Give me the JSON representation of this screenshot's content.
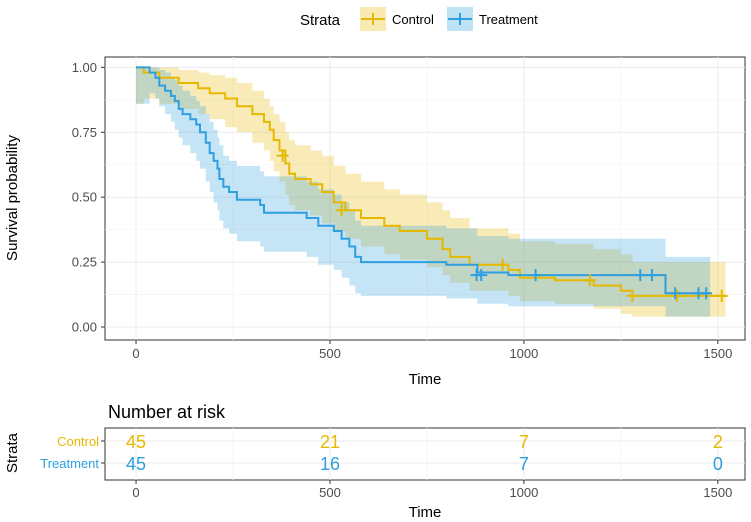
{
  "chart_data": [
    {
      "type": "line",
      "subtype": "kaplan-meier-step",
      "title": "",
      "xlabel": "Time",
      "ylabel": "Survival probability",
      "xlim": [
        -80,
        1570
      ],
      "ylim": [
        -0.05,
        1.04
      ],
      "xticks": [
        0,
        500,
        1000,
        1500
      ],
      "yticks": [
        0,
        0.25,
        0.5,
        0.75,
        1
      ],
      "ytick_labels": [
        "0.00",
        "0.25",
        "0.50",
        "0.75",
        "1.00"
      ],
      "grid": true,
      "legend": {
        "title": "Strata",
        "position": "top",
        "entries": [
          "Control",
          "Treatment"
        ]
      },
      "series": [
        {
          "name": "Control",
          "color": "#E7B800",
          "steps": [
            [
              0,
              1.0
            ],
            [
              20,
              0.98
            ],
            [
              60,
              0.96
            ],
            [
              110,
              0.94
            ],
            [
              160,
              0.92
            ],
            [
              190,
              0.9
            ],
            [
              230,
              0.88
            ],
            [
              260,
              0.85
            ],
            [
              300,
              0.82
            ],
            [
              330,
              0.79
            ],
            [
              345,
              0.76
            ],
            [
              355,
              0.72
            ],
            [
              370,
              0.68
            ],
            [
              385,
              0.63
            ],
            [
              395,
              0.59
            ],
            [
              410,
              0.57
            ],
            [
              450,
              0.55
            ],
            [
              480,
              0.52
            ],
            [
              510,
              0.48
            ],
            [
              540,
              0.45
            ],
            [
              580,
              0.42
            ],
            [
              640,
              0.39
            ],
            [
              680,
              0.37
            ],
            [
              750,
              0.34
            ],
            [
              790,
              0.3
            ],
            [
              810,
              0.27
            ],
            [
              860,
              0.24
            ],
            [
              960,
              0.22
            ],
            [
              990,
              0.19
            ],
            [
              1080,
              0.18
            ],
            [
              1180,
              0.16
            ],
            [
              1250,
              0.14
            ],
            [
              1280,
              0.12
            ]
          ],
          "end_time": 1520,
          "ci_upper": [
            1.0,
            1.0,
            1.0,
            0.99,
            0.98,
            0.97,
            0.96,
            0.94,
            0.91,
            0.88,
            0.85,
            0.82,
            0.79,
            0.75,
            0.72,
            0.7,
            0.68,
            0.66,
            0.62,
            0.59,
            0.56,
            0.53,
            0.51,
            0.48,
            0.45,
            0.42,
            0.38,
            0.36,
            0.33,
            0.32,
            0.3,
            0.28,
            0.25
          ],
          "ci_lower": [
            0.86,
            0.88,
            0.86,
            0.84,
            0.82,
            0.8,
            0.77,
            0.75,
            0.71,
            0.68,
            0.64,
            0.6,
            0.56,
            0.51,
            0.47,
            0.45,
            0.43,
            0.4,
            0.37,
            0.34,
            0.31,
            0.28,
            0.26,
            0.23,
            0.2,
            0.17,
            0.14,
            0.12,
            0.1,
            0.09,
            0.07,
            0.05,
            0.04
          ],
          "censored": [
            [
              378,
              0.66
            ],
            [
              530,
              0.45
            ],
            [
              945,
              0.24
            ],
            [
              1170,
              0.18
            ],
            [
              1280,
              0.12
            ],
            [
              1395,
              0.12
            ],
            [
              1510,
              0.12
            ]
          ]
        },
        {
          "name": "Treatment",
          "color": "#2E9FDF",
          "steps": [
            [
              0,
              1.0
            ],
            [
              35,
              0.98
            ],
            [
              50,
              0.96
            ],
            [
              60,
              0.93
            ],
            [
              75,
              0.91
            ],
            [
              90,
              0.89
            ],
            [
              100,
              0.87
            ],
            [
              110,
              0.84
            ],
            [
              120,
              0.82
            ],
            [
              140,
              0.8
            ],
            [
              155,
              0.78
            ],
            [
              165,
              0.75
            ],
            [
              180,
              0.71
            ],
            [
              190,
              0.67
            ],
            [
              200,
              0.64
            ],
            [
              210,
              0.61
            ],
            [
              215,
              0.57
            ],
            [
              225,
              0.54
            ],
            [
              240,
              0.52
            ],
            [
              260,
              0.49
            ],
            [
              320,
              0.47
            ],
            [
              330,
              0.44
            ],
            [
              440,
              0.42
            ],
            [
              470,
              0.39
            ],
            [
              510,
              0.37
            ],
            [
              530,
              0.34
            ],
            [
              550,
              0.31
            ],
            [
              565,
              0.27
            ],
            [
              580,
              0.25
            ],
            [
              800,
              0.24
            ],
            [
              880,
              0.21
            ],
            [
              960,
              0.2
            ],
            [
              1365,
              0.13
            ]
          ],
          "end_time": 1480,
          "ci_upper": [
            1.0,
            1.0,
            1.0,
            0.99,
            0.98,
            0.96,
            0.95,
            0.93,
            0.91,
            0.89,
            0.87,
            0.85,
            0.82,
            0.79,
            0.76,
            0.73,
            0.7,
            0.66,
            0.64,
            0.62,
            0.6,
            0.58,
            0.56,
            0.53,
            0.51,
            0.48,
            0.45,
            0.41,
            0.39,
            0.38,
            0.35,
            0.34,
            0.27
          ],
          "ci_lower": [
            0.86,
            0.9,
            0.88,
            0.85,
            0.82,
            0.79,
            0.76,
            0.73,
            0.7,
            0.67,
            0.64,
            0.61,
            0.56,
            0.52,
            0.48,
            0.45,
            0.41,
            0.38,
            0.36,
            0.33,
            0.31,
            0.29,
            0.27,
            0.24,
            0.22,
            0.19,
            0.16,
            0.13,
            0.12,
            0.11,
            0.09,
            0.08,
            0.04
          ],
          "censored": [
            [
              878,
              0.2
            ],
            [
              890,
              0.2
            ],
            [
              1030,
              0.2
            ],
            [
              1300,
              0.2
            ],
            [
              1330,
              0.2
            ],
            [
              1390,
              0.13
            ],
            [
              1450,
              0.13
            ],
            [
              1470,
              0.13
            ]
          ]
        }
      ]
    },
    {
      "type": "table",
      "title": "Number at risk",
      "xlabel": "Time",
      "ylabel": "Strata",
      "xlim": [
        -80,
        1570
      ],
      "xticks": [
        0,
        500,
        1000,
        1500
      ],
      "rows": [
        {
          "label": "Control",
          "color": "#E7B800",
          "values": [
            45,
            21,
            7,
            2
          ]
        },
        {
          "label": "Treatment",
          "color": "#2E9FDF",
          "values": [
            45,
            16,
            7,
            0
          ]
        }
      ]
    }
  ]
}
